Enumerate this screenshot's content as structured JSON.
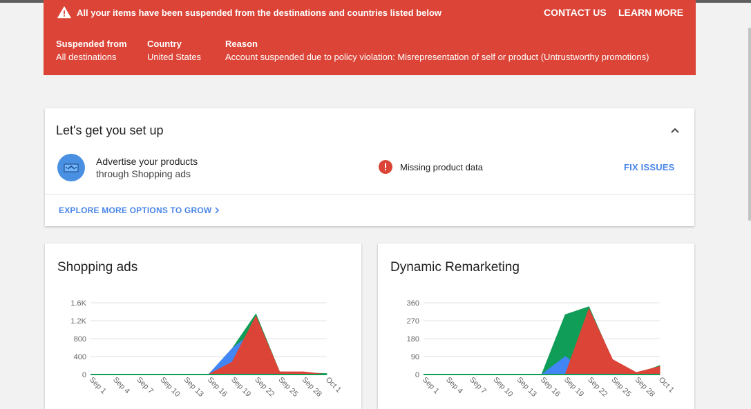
{
  "banner": {
    "title": "All your items have been suspended from the destinations and countries listed below",
    "contact_label": "CONTACT US",
    "learn_label": "LEARN MORE",
    "columns": [
      {
        "label": "Suspended from",
        "value": "All destinations"
      },
      {
        "label": "Country",
        "value": "United States"
      },
      {
        "label": "Reason",
        "value": "Account suspended due to policy violation: Misrepresentation of self or product (Untrustworthy promotions)"
      }
    ]
  },
  "setup": {
    "title": "Let's get you set up",
    "item_title": "Advertise your products",
    "item_subtitle": "through Shopping ads",
    "status_text": "Missing product data",
    "fix_label": "FIX ISSUES",
    "explore_label": "EXPLORE MORE OPTIONS TO GROW"
  },
  "colors": {
    "banner": "#db4437",
    "link": "#4a86e8",
    "green": "#0f9d58",
    "blue": "#4285f4",
    "red": "#db4437",
    "orange": "#f4b400"
  },
  "chart_data": [
    {
      "type": "area",
      "title": "Shopping ads",
      "x": [
        "Sep 1",
        "Sep 4",
        "Sep 7",
        "Sep 10",
        "Sep 13",
        "Sep 16",
        "Sep 19",
        "Sep 22",
        "Sep 25",
        "Sep 28",
        "Oct 1"
      ],
      "yticks": [
        "0",
        "400",
        "800",
        "1.2K",
        "1.6K"
      ],
      "ylim": [
        0,
        1600
      ],
      "series": [
        {
          "values": [
            0,
            0,
            0,
            0,
            0,
            0,
            580,
            1350,
            60,
            40,
            20
          ]
        },
        {
          "values": [
            0,
            0,
            0,
            0,
            0,
            0,
            580,
            1000,
            20,
            0,
            0
          ]
        },
        {
          "values": [
            0,
            0,
            0,
            0,
            0,
            0,
            280,
            1300,
            60,
            60,
            0
          ]
        }
      ]
    },
    {
      "type": "area",
      "title": "Dynamic Remarketing",
      "x": [
        "Sep 1",
        "Sep 4",
        "Sep 7",
        "Sep 10",
        "Sep 13",
        "Sep 16",
        "Sep 19",
        "Sep 22",
        "Sep 25",
        "Sep 28",
        "Oct 1"
      ],
      "yticks": [
        "0",
        "90",
        "180",
        "270",
        "360"
      ],
      "ylim": [
        0,
        360
      ],
      "series": [
        {
          "values": [
            0,
            0,
            0,
            0,
            0,
            0,
            300,
            340,
            70,
            0,
            45
          ]
        },
        {
          "values": [
            0,
            0,
            0,
            0,
            0,
            0,
            90,
            0,
            0,
            0,
            0
          ]
        },
        {
          "values": [
            0,
            0,
            0,
            0,
            0,
            0,
            0,
            330,
            75,
            10,
            40
          ]
        }
      ]
    }
  ]
}
